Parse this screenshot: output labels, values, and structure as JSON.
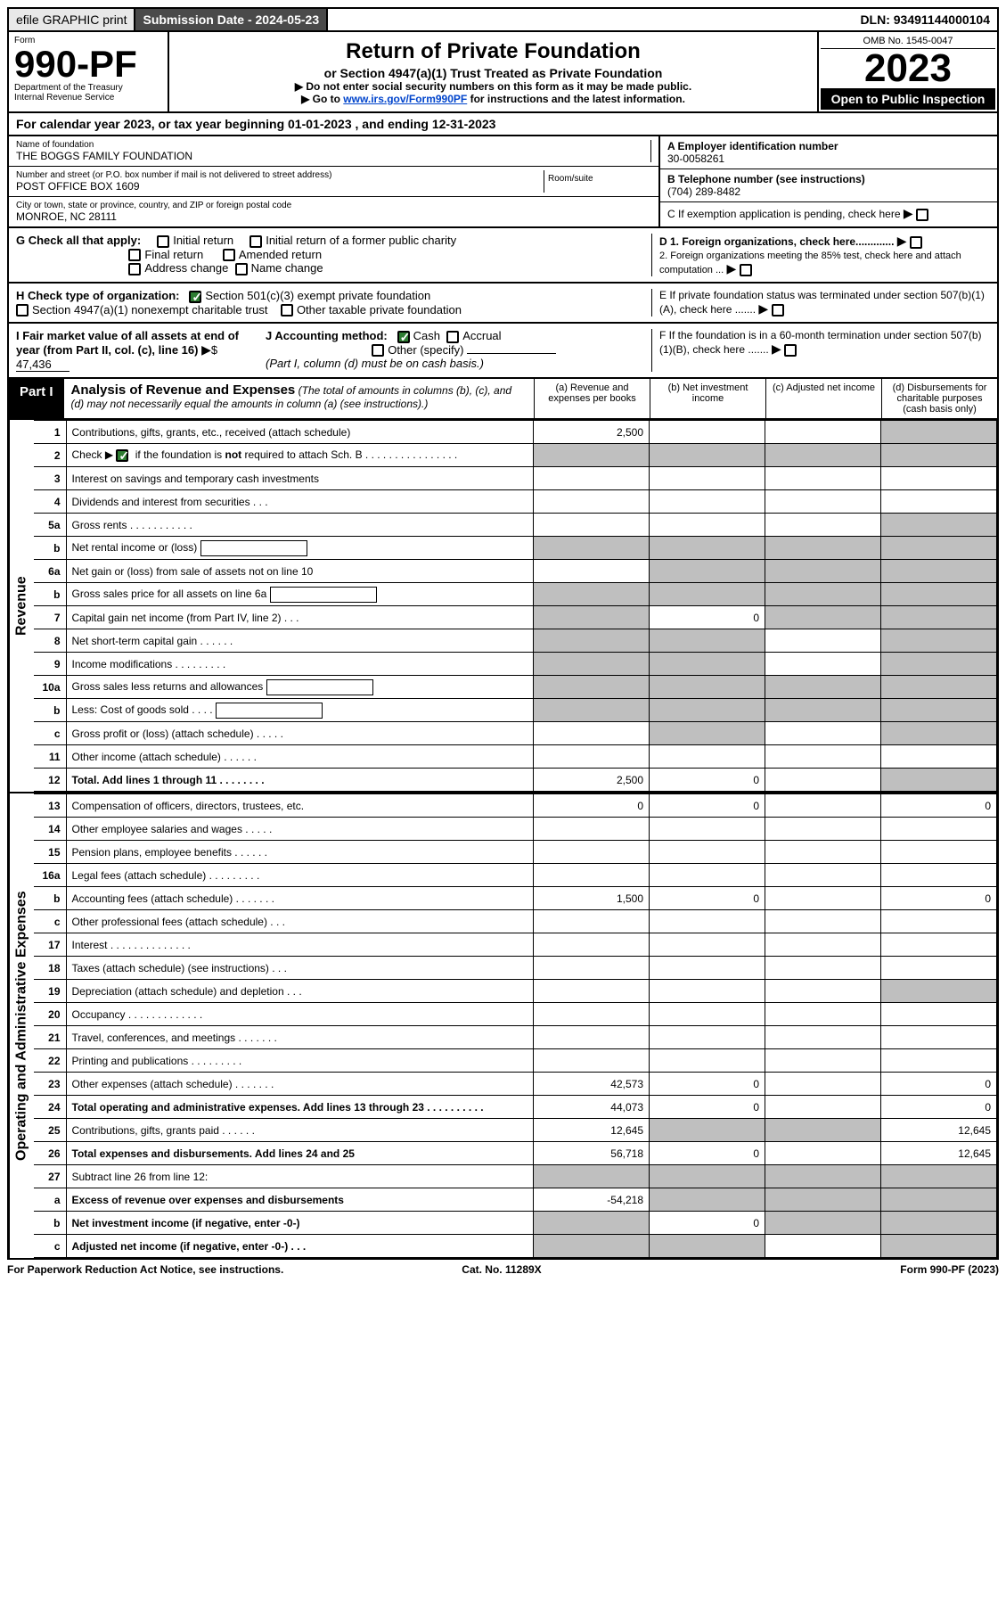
{
  "topbar": {
    "efile": "efile GRAPHIC print",
    "subdate": "Submission Date - 2024-05-23",
    "dln": "DLN: 93491144000104"
  },
  "header": {
    "form_label": "Form",
    "form_no": "990-PF",
    "dept": "Department of the Treasury",
    "irs": "Internal Revenue Service",
    "title": "Return of Private Foundation",
    "subtitle": "or Section 4947(a)(1) Trust Treated as Private Foundation",
    "note1": "▶ Do not enter social security numbers on this form as it may be made public.",
    "note2_pre": "▶ Go to ",
    "note2_link": "www.irs.gov/Form990PF",
    "note2_post": " for instructions and the latest information.",
    "omb": "OMB No. 1545-0047",
    "year": "2023",
    "open": "Open to Public Inspection"
  },
  "calyear": "For calendar year 2023, or tax year beginning 01-01-2023                               , and ending 12-31-2023",
  "info": {
    "name_lbl": "Name of foundation",
    "name": "THE BOGGS FAMILY FOUNDATION",
    "addr_lbl": "Number and street (or P.O. box number if mail is not delivered to street address)",
    "addr": "POST OFFICE BOX 1609",
    "room_lbl": "Room/suite",
    "city_lbl": "City or town, state or province, country, and ZIP or foreign postal code",
    "city": "MONROE, NC  28111",
    "a_lbl": "A Employer identification number",
    "a": "30-0058261",
    "b_lbl": "B Telephone number (see instructions)",
    "b": "(704) 289-8482",
    "c": "C If exemption application is pending, check here",
    "d1": "D 1. Foreign organizations, check here.............",
    "d2": "2. Foreign organizations meeting the 85% test, check here and attach computation ...",
    "e": "E  If private foundation status was terminated under section 507(b)(1)(A), check here .......",
    "f": "F  If the foundation is in a 60-month termination under section 507(b)(1)(B), check here .......",
    "g": "G Check all that apply:",
    "g1": "Initial return",
    "g2": "Initial return of a former public charity",
    "g3": "Final return",
    "g4": "Amended return",
    "g5": "Address change",
    "g6": "Name change",
    "h": "H Check type of organization:",
    "h1": "Section 501(c)(3) exempt private foundation",
    "h2": "Section 4947(a)(1) nonexempt charitable trust",
    "h3": "Other taxable private foundation",
    "i": "I Fair market value of all assets at end of year (from Part II, col. (c), line 16)",
    "i_val": "47,436",
    "j": "J Accounting method:",
    "j1": "Cash",
    "j2": "Accrual",
    "j3": "Other (specify)",
    "j_note": "(Part I, column (d) must be on cash basis.)"
  },
  "part1": {
    "tag": "Part I",
    "title": "Analysis of Revenue and Expenses",
    "note": "(The total of amounts in columns (b), (c), and (d) may not necessarily equal the amounts in column (a) (see instructions).)",
    "col_a": "(a)   Revenue and expenses per books",
    "col_b": "(b)   Net investment income",
    "col_c": "(c)   Adjusted net income",
    "col_d": "(d)   Disbursements for charitable purposes (cash basis only)"
  },
  "side": {
    "rev": "Revenue",
    "exp": "Operating and Administrative Expenses"
  },
  "rows": [
    {
      "n": "1",
      "d": "Contributions, gifts, grants, etc., received (attach schedule)",
      "a": "2,500",
      "shade": [
        "d"
      ]
    },
    {
      "n": "2",
      "d": "Check ▶ ☑ if the foundation is not required to attach Sch. B     .  .  .  .  .  .  .  .  .  .  .  .  .  .  .  .",
      "shade": [
        "a",
        "b",
        "c",
        "d"
      ],
      "checkmark": true
    },
    {
      "n": "3",
      "d": "Interest on savings and temporary cash investments"
    },
    {
      "n": "4",
      "d": "Dividends and interest from securities     .   .   ."
    },
    {
      "n": "5a",
      "d": "Gross rents     .   .   .   .   .   .   .   .   .   .   .",
      "shade": [
        "d"
      ]
    },
    {
      "n": "b",
      "d": "Net rental income or (loss)",
      "inline": true,
      "shade": [
        "a",
        "b",
        "c",
        "d"
      ]
    },
    {
      "n": "6a",
      "d": "Net gain or (loss) from sale of assets not on line 10",
      "shade": [
        "b",
        "c",
        "d"
      ]
    },
    {
      "n": "b",
      "d": "Gross sales price for all assets on line 6a",
      "inline": true,
      "shade": [
        "a",
        "b",
        "c",
        "d"
      ]
    },
    {
      "n": "7",
      "d": "Capital gain net income (from Part IV, line 2)    .   .   .",
      "b": "0",
      "shade": [
        "a",
        "c",
        "d"
      ]
    },
    {
      "n": "8",
      "d": "Net short-term capital gain    .   .   .   .   .   .",
      "shade": [
        "a",
        "b",
        "d"
      ]
    },
    {
      "n": "9",
      "d": "Income modifications  .   .   .   .   .   .   .   .   .",
      "shade": [
        "a",
        "b",
        "d"
      ]
    },
    {
      "n": "10a",
      "d": "Gross sales less returns and allowances",
      "inline": true,
      "shade": [
        "a",
        "b",
        "c",
        "d"
      ]
    },
    {
      "n": "b",
      "d": "Less: Cost of goods sold     .   .   .   .",
      "inline": true,
      "shade": [
        "a",
        "b",
        "c",
        "d"
      ]
    },
    {
      "n": "c",
      "d": "Gross profit or (loss) (attach schedule)      .   .   .   .   .",
      "shade": [
        "b",
        "d"
      ]
    },
    {
      "n": "11",
      "d": "Other income (attach schedule)     .   .   .   .   .   ."
    },
    {
      "n": "12",
      "d": "Total. Add lines 1 through 11    .   .   .   .   .   .   .   .",
      "a": "2,500",
      "b": "0",
      "bold": true,
      "shade": [
        "d"
      ]
    }
  ],
  "exp_rows": [
    {
      "n": "13",
      "d": "Compensation of officers, directors, trustees, etc.",
      "a": "0",
      "b": "0",
      "dd": "0"
    },
    {
      "n": "14",
      "d": "Other employee salaries and wages      .   .   .   .   ."
    },
    {
      "n": "15",
      "d": "Pension plans, employee benefits   .   .   .   .   .   ."
    },
    {
      "n": "16a",
      "d": "Legal fees (attach schedule)  .   .   .   .   .   .   .   .   ."
    },
    {
      "n": "b",
      "d": "Accounting fees (attach schedule)  .   .   .   .   .   .   .",
      "a": "1,500",
      "b": "0",
      "dd": "0"
    },
    {
      "n": "c",
      "d": "Other professional fees (attach schedule)     .   .   ."
    },
    {
      "n": "17",
      "d": "Interest  .   .   .   .   .   .   .   .   .   .   .   .   .   ."
    },
    {
      "n": "18",
      "d": "Taxes (attach schedule) (see instructions)       .   .   ."
    },
    {
      "n": "19",
      "d": "Depreciation (attach schedule) and depletion     .   .   .",
      "shade": [
        "d"
      ]
    },
    {
      "n": "20",
      "d": "Occupancy  .   .   .   .   .   .   .   .   .   .   .   .   ."
    },
    {
      "n": "21",
      "d": "Travel, conferences, and meetings  .   .   .   .   .   .   ."
    },
    {
      "n": "22",
      "d": "Printing and publications  .   .   .   .   .   .   .   .   ."
    },
    {
      "n": "23",
      "d": "Other expenses (attach schedule)  .   .   .   .   .   .   .",
      "a": "42,573",
      "b": "0",
      "dd": "0"
    },
    {
      "n": "24",
      "d": "Total operating and administrative expenses. Add lines 13 through 23    .   .   .   .   .   .   .   .   .   .",
      "a": "44,073",
      "b": "0",
      "dd": "0",
      "bold": true
    },
    {
      "n": "25",
      "d": "Contributions, gifts, grants paid      .   .   .   .   .   .",
      "a": "12,645",
      "dd": "12,645",
      "shade": [
        "b",
        "c"
      ]
    },
    {
      "n": "26",
      "d": "Total expenses and disbursements. Add lines 24 and 25",
      "a": "56,718",
      "b": "0",
      "dd": "12,645",
      "bold": true
    },
    {
      "n": "27",
      "d": "Subtract line 26 from line 12:",
      "shade": [
        "a",
        "b",
        "c",
        "d"
      ]
    },
    {
      "n": "a",
      "d": "Excess of revenue over expenses and disbursements",
      "a": "-54,218",
      "bold": true,
      "shade": [
        "b",
        "c",
        "d"
      ]
    },
    {
      "n": "b",
      "d": "Net investment income (if negative, enter -0-)",
      "b": "0",
      "bold": true,
      "shade": [
        "a",
        "c",
        "d"
      ]
    },
    {
      "n": "c",
      "d": "Adjusted net income (if negative, enter -0-)    .   .   .",
      "bold": true,
      "shade": [
        "a",
        "b",
        "d"
      ]
    }
  ],
  "footer": {
    "left": "For Paperwork Reduction Act Notice, see instructions.",
    "mid": "Cat. No. 11289X",
    "right": "Form 990-PF (2023)"
  }
}
